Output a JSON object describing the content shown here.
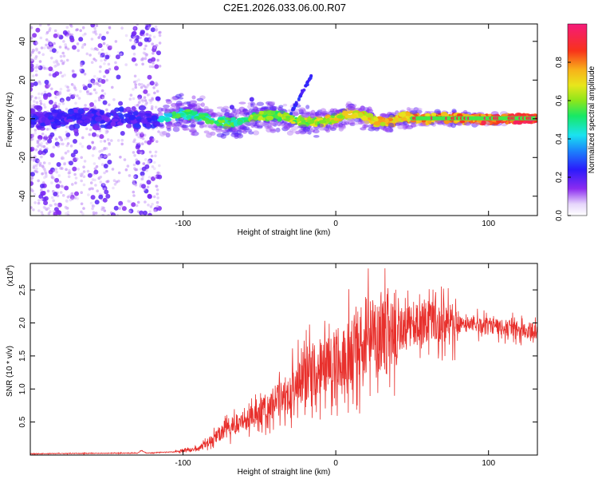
{
  "title": "C2E1.2026.033.06.00.R07",
  "chart_data": [
    {
      "type": "heatmap",
      "name": "spectrogram",
      "xlabel": "Height of straight line (km)",
      "ylabel": "Frequency (Hz)",
      "xlim": [
        -200,
        132
      ],
      "ylim": [
        -50,
        49
      ],
      "xticks": [
        -100,
        0,
        100
      ],
      "xtick_labels": [
        "-100",
        "0",
        "100"
      ],
      "yticks": [
        40,
        20,
        0,
        -20,
        -40
      ],
      "ytick_labels": [
        "40",
        "20",
        "0",
        "-20",
        "-40"
      ],
      "colorbar": {
        "label": "Normalized spectral amplitude",
        "range": [
          0,
          1
        ],
        "ticks": [
          0.0,
          0.2,
          0.4,
          0.6,
          0.8
        ],
        "tick_labels": [
          "0.0",
          "0.2",
          "0.4",
          "0.6",
          "0.8"
        ]
      },
      "description_points": {
        "noise_region_x": [
          -200,
          -115
        ],
        "central_band_x": [
          -115,
          132
        ],
        "central_band_freq": 0,
        "streak": {
          "x": [
            -30,
            -16
          ],
          "freq": [
            2,
            22
          ]
        }
      }
    },
    {
      "type": "line",
      "name": "snr",
      "xlabel": "Height of straight line (km)",
      "ylabel": "SNR (10 * v/v)",
      "scale_label": "(x10",
      "scale_exp": "4",
      "xlim": [
        -200,
        132
      ],
      "ylim": [
        0,
        2.9
      ],
      "xticks": [
        -100,
        0,
        100
      ],
      "xtick_labels": [
        "-100",
        "0",
        "100"
      ],
      "yticks": [
        0.5,
        1.0,
        1.5,
        2.0,
        2.5
      ],
      "ytick_labels": [
        "0.5",
        "1.0",
        "1.5",
        "2.0",
        "2.5"
      ],
      "color": "#e8302c",
      "trend": {
        "x": [
          -200,
          -130,
          -127,
          -124,
          -105,
          -90,
          -80,
          -70,
          -60,
          -50,
          -40,
          -30,
          -20,
          -10,
          0,
          10,
          20,
          30,
          40,
          50,
          60,
          70,
          80,
          90,
          100,
          110,
          120,
          132
        ],
        "y": [
          0.02,
          0.03,
          0.07,
          0.03,
          0.05,
          0.1,
          0.25,
          0.42,
          0.52,
          0.65,
          0.8,
          1.0,
          1.2,
          1.35,
          1.45,
          1.6,
          1.75,
          1.85,
          1.9,
          1.95,
          2.0,
          2.0,
          1.98,
          1.97,
          1.95,
          1.92,
          1.9,
          1.88
        ]
      }
    }
  ]
}
